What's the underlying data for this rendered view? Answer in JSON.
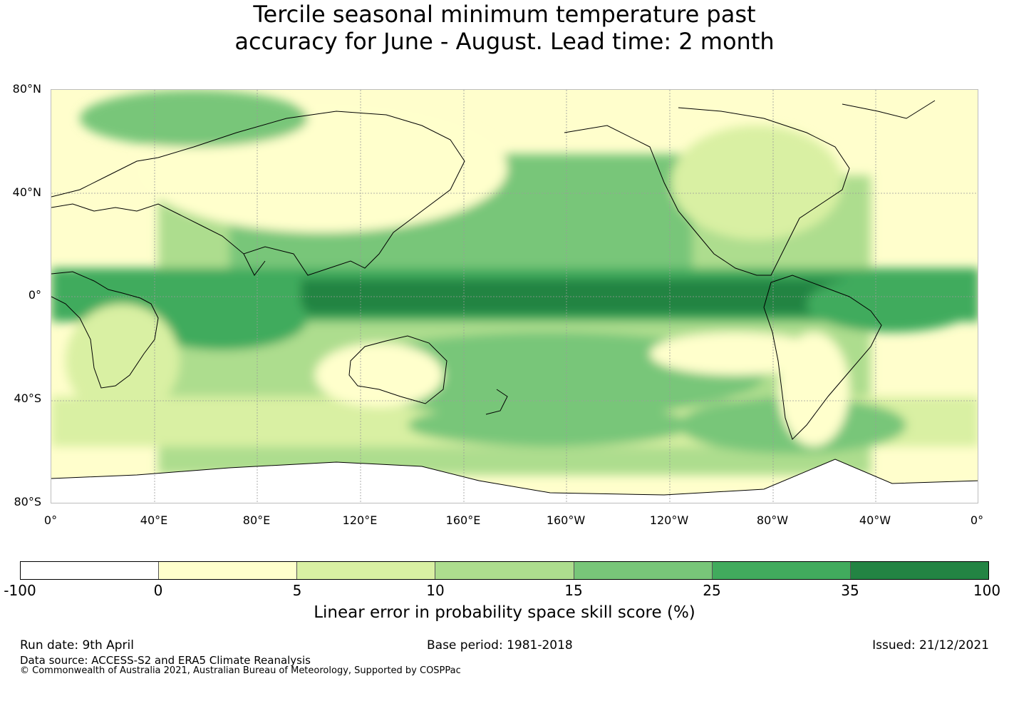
{
  "title_line1": "Tercile seasonal minimum temperature past",
  "title_line2": "accuracy for June - August. Lead time: 2 month",
  "map": {
    "projection": "equirectangular",
    "lon_range": [
      0,
      360
    ],
    "lat_range": [
      -80,
      80
    ],
    "gridlines": true,
    "lat_labels": [
      "80°N",
      "40°N",
      "0°",
      "40°S",
      "80°S"
    ],
    "lon_labels": [
      "0°",
      "40°E",
      "80°E",
      "120°E",
      "160°E",
      "160°W",
      "120°W",
      "80°W",
      "40°W",
      "0°"
    ],
    "background_class_color": "#fffecc"
  },
  "colorbar": {
    "label": "Linear error in probability space skill score (%)",
    "ticks": [
      "-100",
      "0",
      "5",
      "10",
      "15",
      "25",
      "35",
      "100"
    ],
    "colors": [
      "#ffffff",
      "#ffffcc",
      "#d9f0a3",
      "#addd8e",
      "#78c679",
      "#41ab5d",
      "#238443"
    ]
  },
  "footer": {
    "run_date": "Run date: 9th April",
    "base_period": "Base period: 1981-2018",
    "issued": "Issued: 21/12/2021",
    "data_source": "Data source: ACCESS-S2 and ERA5 Climate Reanalysis",
    "copyright": "© Commonwealth of Australia 2021, Australian Bureau of Meteorology, Supported by COSPPac"
  }
}
